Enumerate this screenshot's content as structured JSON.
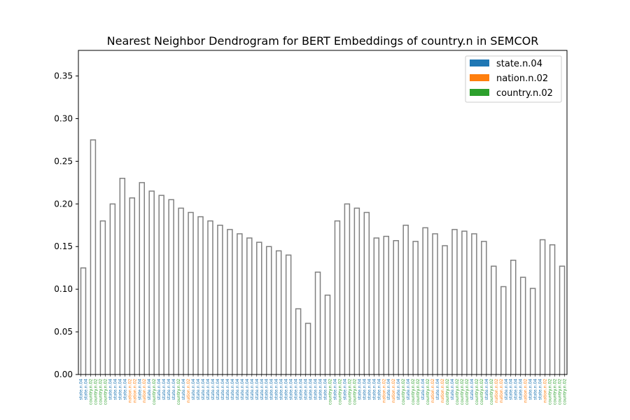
{
  "chart_data": {
    "type": "dendrogram",
    "title": "Nearest Neighbor Dendrogram for BERT Embeddings of country.n in SEMCOR",
    "xlabel": "",
    "ylabel": "",
    "ylim": [
      0,
      0.38
    ],
    "yticks": [
      "0.00",
      "0.05",
      "0.10",
      "0.15",
      "0.20",
      "0.25",
      "0.30",
      "0.35"
    ],
    "link_color": "#808080",
    "legend": {
      "placement": "top-right",
      "entries": [
        {
          "label": "state.n.04",
          "color": "#1f77b4"
        },
        {
          "label": "nation.n.02",
          "color": "#ff7f0e"
        },
        {
          "label": "country.n.02",
          "color": "#2ca02c"
        }
      ]
    },
    "leaves": [
      "state.n.04",
      "state.n.04",
      "country.n.02",
      "country.n.02",
      "country.n.02",
      "country.n.02",
      "state.n.04",
      "state.n.04",
      "state.n.04",
      "state.n.04",
      "nation.n.02",
      "nation.n.02",
      "state.n.04",
      "nation.n.02",
      "state.n.04",
      "country.n.02",
      "state.n.04",
      "state.n.04",
      "state.n.04",
      "state.n.04",
      "country.n.02",
      "state.n.04",
      "nation.n.02",
      "state.n.04",
      "state.n.04",
      "state.n.04",
      "state.n.04",
      "state.n.04",
      "state.n.04",
      "state.n.04",
      "state.n.04",
      "state.n.04",
      "state.n.04",
      "state.n.04",
      "state.n.04",
      "state.n.04",
      "state.n.04",
      "state.n.04",
      "state.n.04",
      "state.n.04",
      "state.n.04",
      "state.n.04",
      "state.n.04",
      "state.n.04",
      "state.n.04",
      "state.n.04",
      "state.n.04",
      "state.n.04",
      "state.n.04",
      "state.n.04",
      "state.n.04",
      "country.n.02",
      "state.n.04",
      "country.n.02",
      "state.n.04",
      "country.n.02",
      "country.n.02",
      "state.n.04",
      "state.n.04",
      "state.n.04",
      "state.n.04",
      "state.n.04",
      "nation.n.02",
      "state.n.04",
      "nation.n.02",
      "state.n.04",
      "country.n.02",
      "state.n.04",
      "country.n.02",
      "country.n.02",
      "state.n.04",
      "country.n.02",
      "nation.n.02",
      "state.n.04",
      "nation.n.02",
      "country.n.02",
      "state.n.04",
      "country.n.02",
      "country.n.02",
      "country.n.02",
      "state.n.04",
      "country.n.02",
      "country.n.02",
      "state.n.04",
      "country.n.02",
      "nation.n.02",
      "nation.n.02",
      "state.n.04",
      "state.n.04",
      "state.n.04",
      "state.n.04",
      "nation.n.02",
      "state.n.04",
      "state.n.04",
      "state.n.04",
      "nation.n.02",
      "country.n.02",
      "country.n.02",
      "country.n.02",
      "country.n.02"
    ],
    "links": [
      {
        "l": [
          0,
          0
        ],
        "r": [
          1,
          0
        ],
        "h": 0.125
      },
      {
        "l": [
          2,
          0
        ],
        "r": [
          3,
          0
        ],
        "h": 0.275
      },
      {
        "l": [
          4,
          0
        ],
        "r": [
          5,
          0
        ],
        "h": 0.18
      },
      {
        "l": [
          6,
          0
        ],
        "r": [
          7,
          0
        ],
        "h": 0.2
      },
      {
        "l": [
          8,
          0
        ],
        "r": [
          9,
          0
        ],
        "h": 0.23
      },
      {
        "l": [
          10,
          0
        ],
        "r": [
          11,
          0
        ],
        "h": 0.207
      },
      {
        "l": [
          12,
          0
        ],
        "r": [
          13,
          0
        ],
        "h": 0.225
      },
      {
        "l": [
          14,
          0
        ],
        "r": [
          15,
          0
        ],
        "h": 0.215
      },
      {
        "l": [
          16,
          0
        ],
        "r": [
          17,
          0
        ],
        "h": 0.21
      },
      {
        "l": [
          18,
          0
        ],
        "r": [
          19,
          0
        ],
        "h": 0.205
      },
      {
        "l": [
          20,
          0
        ],
        "r": [
          21,
          0
        ],
        "h": 0.195
      },
      {
        "l": [
          22,
          0
        ],
        "r": [
          23,
          0
        ],
        "h": 0.19
      },
      {
        "l": [
          24,
          0
        ],
        "r": [
          25,
          0
        ],
        "h": 0.185
      },
      {
        "l": [
          26,
          0
        ],
        "r": [
          27,
          0
        ],
        "h": 0.18
      },
      {
        "l": [
          28,
          0
        ],
        "r": [
          29,
          0
        ],
        "h": 0.175
      },
      {
        "l": [
          30,
          0
        ],
        "r": [
          31,
          0
        ],
        "h": 0.17
      },
      {
        "l": [
          32,
          0
        ],
        "r": [
          33,
          0
        ],
        "h": 0.165
      },
      {
        "l": [
          34,
          0
        ],
        "r": [
          35,
          0
        ],
        "h": 0.16
      },
      {
        "l": [
          36,
          0
        ],
        "r": [
          37,
          0
        ],
        "h": 0.155
      },
      {
        "l": [
          38,
          0
        ],
        "r": [
          39,
          0
        ],
        "h": 0.15
      },
      {
        "l": [
          40,
          0
        ],
        "r": [
          41,
          0
        ],
        "h": 0.145
      },
      {
        "l": [
          42,
          0
        ],
        "r": [
          43,
          0
        ],
        "h": 0.14
      },
      {
        "l": [
          44,
          0
        ],
        "r": [
          45,
          0
        ],
        "h": 0.077
      },
      {
        "l": [
          46,
          0
        ],
        "r": [
          47,
          0
        ],
        "h": 0.06
      },
      {
        "l": [
          48,
          0
        ],
        "r": [
          49,
          0
        ],
        "h": 0.12
      },
      {
        "l": [
          50,
          0
        ],
        "r": [
          51,
          0
        ],
        "h": 0.093
      },
      {
        "l": [
          52,
          0
        ],
        "r": [
          53,
          0
        ],
        "h": 0.18
      },
      {
        "l": [
          54,
          0
        ],
        "r": [
          55,
          0
        ],
        "h": 0.2
      },
      {
        "l": [
          56,
          0
        ],
        "r": [
          57,
          0
        ],
        "h": 0.195
      },
      {
        "l": [
          58,
          0
        ],
        "r": [
          59,
          0
        ],
        "h": 0.19
      },
      {
        "l": [
          60,
          0
        ],
        "r": [
          61,
          0
        ],
        "h": 0.16
      },
      {
        "l": [
          62,
          0
        ],
        "r": [
          63,
          0
        ],
        "h": 0.162
      },
      {
        "l": [
          64,
          0
        ],
        "r": [
          65,
          0
        ],
        "h": 0.157
      },
      {
        "l": [
          66,
          0
        ],
        "r": [
          67,
          0
        ],
        "h": 0.175
      },
      {
        "l": [
          68,
          0
        ],
        "r": [
          69,
          0
        ],
        "h": 0.156
      },
      {
        "l": [
          70,
          0
        ],
        "r": [
          71,
          0
        ],
        "h": 0.172
      },
      {
        "l": [
          72,
          0
        ],
        "r": [
          73,
          0
        ],
        "h": 0.165
      },
      {
        "l": [
          74,
          0
        ],
        "r": [
          75,
          0
        ],
        "h": 0.151
      },
      {
        "l": [
          76,
          0
        ],
        "r": [
          77,
          0
        ],
        "h": 0.17
      },
      {
        "l": [
          78,
          0
        ],
        "r": [
          79,
          0
        ],
        "h": 0.168
      },
      {
        "l": [
          80,
          0
        ],
        "r": [
          81,
          0
        ],
        "h": 0.165
      },
      {
        "l": [
          82,
          0
        ],
        "r": [
          83,
          0
        ],
        "h": 0.156
      },
      {
        "l": [
          84,
          0
        ],
        "r": [
          85,
          0
        ],
        "h": 0.127
      },
      {
        "l": [
          86,
          0
        ],
        "r": [
          87,
          0
        ],
        "h": 0.103
      },
      {
        "l": [
          88,
          0
        ],
        "r": [
          89,
          0
        ],
        "h": 0.134
      },
      {
        "l": [
          90,
          0
        ],
        "r": [
          91,
          0
        ],
        "h": 0.114
      },
      {
        "l": [
          92,
          0
        ],
        "r": [
          93,
          0
        ],
        "h": 0.101
      },
      {
        "l": [
          94,
          0
        ],
        "r": [
          95,
          0
        ],
        "h": 0.158
      },
      {
        "l": [
          96,
          0
        ],
        "r": [
          97,
          0
        ],
        "h": 0.152
      },
      {
        "l": [
          98,
          0
        ],
        "r": [
          99,
          0
        ],
        "h": 0.127
      }
    ]
  }
}
